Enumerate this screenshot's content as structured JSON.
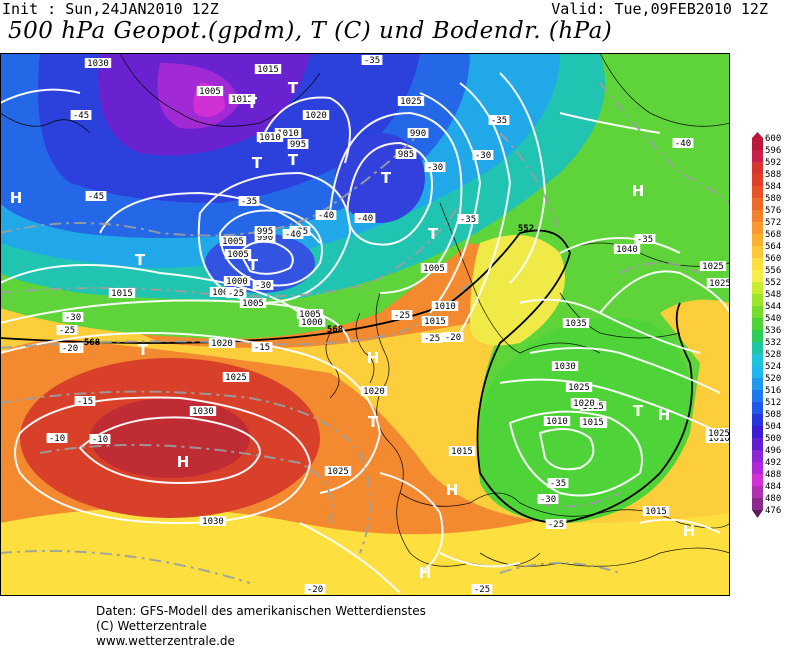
{
  "header": {
    "init": "Init : Sun,24JAN2010 12Z",
    "valid": "Valid: Tue,09FEB2010 12Z",
    "title": "500 hPa Geopot.(gpdm), T (C) und Bodendr. (hPa)"
  },
  "legend": {
    "values": [
      "600",
      "596",
      "592",
      "588",
      "584",
      "580",
      "576",
      "572",
      "568",
      "564",
      "560",
      "556",
      "552",
      "548",
      "544",
      "540",
      "536",
      "532",
      "528",
      "524",
      "520",
      "516",
      "512",
      "508",
      "504",
      "500",
      "496",
      "492",
      "488",
      "484",
      "480",
      "476"
    ],
    "colors": [
      "#b8183c",
      "#c8204a",
      "#d83430",
      "#e0402a",
      "#e85228",
      "#ee6a28",
      "#f48030",
      "#f89a30",
      "#fcb030",
      "#fdc838",
      "#fde040",
      "#f5ee48",
      "#c8ec30",
      "#9ee42c",
      "#78dc2c",
      "#4ed438",
      "#30cc58",
      "#20c4a0",
      "#20c4d8",
      "#20b8ec",
      "#2098f0",
      "#2078f0",
      "#2058e8",
      "#2838d8",
      "#3c1cd0",
      "#6020d0",
      "#8c28d4",
      "#b028d8",
      "#d030d4",
      "#b030b0",
      "#8a2a8a",
      "#5c1c5c"
    ]
  },
  "map": {
    "pressure_labels": [
      "1030",
      "1015",
      "1015",
      "1010",
      "1005",
      "1020",
      "1025",
      "1010",
      "995",
      "990",
      "985",
      "990",
      "995",
      "1000",
      "1005",
      "1005",
      "1015",
      "1005",
      "1000",
      "1005",
      "1000",
      "1005",
      "1010",
      "1015",
      "1020",
      "1025",
      "1030",
      "1025",
      "1030",
      "1020",
      "1015",
      "1010",
      "1020",
      "1025",
      "1010",
      "1015",
      "1010",
      "1025",
      "1025",
      "1040",
      "1025",
      "1020",
      "1015",
      "1035",
      "1030",
      "1025"
    ],
    "temperature_labels": [
      "-35",
      "-45",
      "-45",
      "-35",
      "-40",
      "-40",
      "-35",
      "-40",
      "-30",
      "-35",
      "-30",
      "-25",
      "-20",
      "-30",
      "-25",
      "-25",
      "-15",
      "-15",
      "-10",
      "-10",
      "-20",
      "-25",
      "-30",
      "-35",
      "-40",
      "-35",
      "-35",
      "-30",
      "-25",
      "-20",
      "-20",
      "-25"
    ],
    "geopotential_labels": [
      "568",
      "568",
      "552"
    ],
    "high_markers": [
      "H",
      "H",
      "H",
      "H",
      "H",
      "H",
      "H",
      "H"
    ],
    "low_markers": [
      "T",
      "T",
      "T",
      "T",
      "T",
      "T",
      "T",
      "T",
      "T",
      "T",
      "T"
    ]
  },
  "credits": {
    "line1": "Daten: GFS-Modell des amerikanischen Wetterdienstes",
    "line2": "(C) Wetterzentrale",
    "line3": "www.wetterzentrale.de"
  }
}
